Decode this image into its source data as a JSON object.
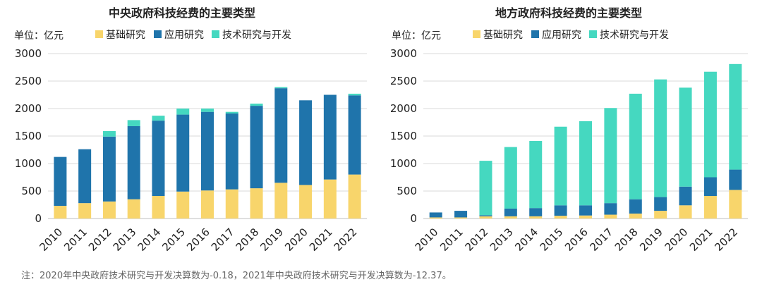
{
  "chart_data": [
    {
      "type": "bar",
      "stacked": true,
      "title": "中央政府科技经费的主要类型",
      "unit_label": "单位：亿元",
      "categories": [
        "2010",
        "2011",
        "2012",
        "2013",
        "2014",
        "2015",
        "2016",
        "2017",
        "2018",
        "2019",
        "2020",
        "2021",
        "2022"
      ],
      "series": [
        {
          "name": "基础研究",
          "color": "#F8D56B",
          "values": [
            230,
            280,
            310,
            350,
            410,
            490,
            510,
            530,
            550,
            650,
            610,
            710,
            800
          ]
        },
        {
          "name": "应用研究",
          "color": "#1F74AB",
          "values": [
            890,
            980,
            1180,
            1330,
            1370,
            1400,
            1430,
            1380,
            1500,
            1720,
            1540,
            1540,
            1440
          ]
        },
        {
          "name": "技术研究与开发",
          "color": "#45D8C0",
          "values": [
            0,
            0,
            100,
            110,
            90,
            110,
            60,
            30,
            40,
            20,
            0,
            0,
            30
          ]
        }
      ],
      "ylim": [
        0,
        3000
      ],
      "yticks": [
        0,
        500,
        1000,
        1500,
        2000,
        2500,
        3000
      ],
      "grid": true,
      "legend": "top"
    },
    {
      "type": "bar",
      "stacked": true,
      "title": "地方政府科技经费的主要类型",
      "unit_label": "单位：亿元",
      "categories": [
        "2010",
        "2011",
        "2012",
        "2013",
        "2014",
        "2015",
        "2016",
        "2017",
        "2018",
        "2019",
        "2020",
        "2021",
        "2022"
      ],
      "series": [
        {
          "name": "基础研究",
          "color": "#F8D56B",
          "values": [
            20,
            20,
            40,
            40,
            40,
            50,
            55,
            70,
            90,
            140,
            240,
            410,
            520
          ]
        },
        {
          "name": "应用研究",
          "color": "#1F74AB",
          "values": [
            90,
            120,
            20,
            140,
            150,
            190,
            185,
            210,
            260,
            250,
            340,
            340,
            370
          ]
        },
        {
          "name": "技术研究与开发",
          "color": "#45D8C0",
          "values": [
            0,
            0,
            990,
            1120,
            1220,
            1430,
            1530,
            1730,
            1920,
            2140,
            1800,
            1920,
            1920
          ]
        }
      ],
      "ylim": [
        0,
        3000
      ],
      "yticks": [
        0,
        500,
        1000,
        1500,
        2000,
        2500,
        3000
      ],
      "grid": true,
      "legend": "top"
    }
  ],
  "footnote": "注：2020年中央政府技术研究与开发决算数为-0.18，2021年中央政府技术研究与开发决算数为-12.37。"
}
